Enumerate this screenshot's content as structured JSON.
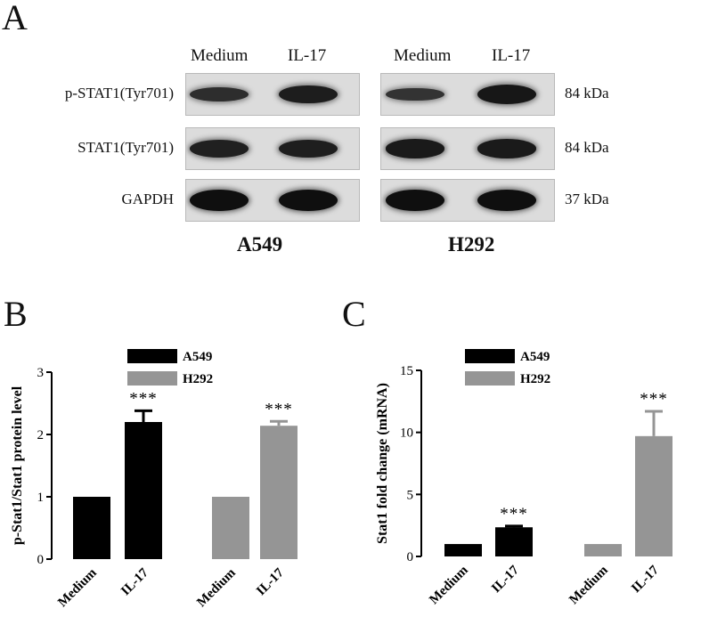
{
  "panels": {
    "a": "A",
    "b": "B",
    "c": "C"
  },
  "blot": {
    "lane_headers": [
      "Medium",
      "IL-17",
      "Medium",
      "IL-17"
    ],
    "rows": [
      {
        "label": "p-STAT1(Tyr701)",
        "kda": "84 kDa",
        "intensity": [
          0.45,
          0.75,
          0.35,
          0.85
        ]
      },
      {
        "label": "STAT1(Tyr701)",
        "kda": "84 kDa",
        "intensity": [
          0.7,
          0.72,
          0.8,
          0.8
        ]
      },
      {
        "label": "GAPDH",
        "kda": "37 kDa",
        "intensity": [
          1.0,
          1.0,
          1.0,
          1.0
        ]
      }
    ],
    "cell_lines": [
      "A549",
      "H292"
    ]
  },
  "chart_data": [
    {
      "type": "bar",
      "ylabel": "p-Stat1/Stat1 protein level",
      "ylim": [
        0,
        3
      ],
      "yticks": [
        "0",
        "1",
        "2",
        "3"
      ],
      "categories": [
        "Medium",
        "IL-17",
        "Medium",
        "IL-17"
      ],
      "groups": [
        "A549",
        "A549",
        "H292",
        "H292"
      ],
      "values": [
        1.0,
        2.2,
        1.0,
        2.14
      ],
      "errors": [
        0,
        0.18,
        0,
        0.07
      ],
      "significance": [
        "",
        "***",
        "",
        "***"
      ],
      "legend": [
        {
          "name": "A549",
          "color": "#000000"
        },
        {
          "name": "H292",
          "color": "#959595"
        }
      ],
      "legend_position": "top-right"
    },
    {
      "type": "bar",
      "ylabel": "Stat1 fold change (mRNA)",
      "ylim": [
        0,
        15
      ],
      "yticks": [
        "0",
        "5",
        "10",
        "15"
      ],
      "categories": [
        "Medium",
        "IL-17",
        "Medium",
        "IL-17"
      ],
      "groups": [
        "A549",
        "A549",
        "H292",
        "H292"
      ],
      "values": [
        1.0,
        2.35,
        1.0,
        9.7
      ],
      "errors": [
        0,
        0.1,
        0,
        2.0
      ],
      "significance": [
        "",
        "***",
        "",
        "***"
      ],
      "legend": [
        {
          "name": "A549",
          "color": "#000000"
        },
        {
          "name": "H292",
          "color": "#959595"
        }
      ],
      "legend_position": "top-left"
    }
  ]
}
